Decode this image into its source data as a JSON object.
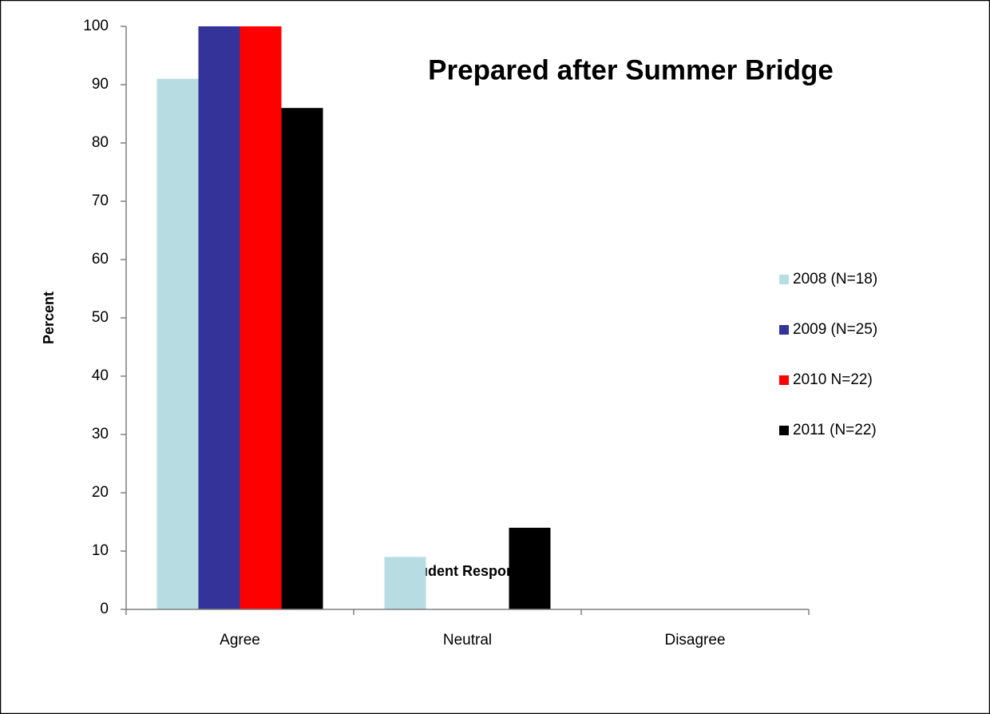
{
  "chart_data": {
    "type": "bar",
    "title": "Prepared after Summer Bridge",
    "xlabel": "Student Response",
    "ylabel": "Percent",
    "categories": [
      "Agree",
      "Neutral",
      "Disagree"
    ],
    "series": [
      {
        "name": "2008 (N=18)",
        "color": "#b7dde2",
        "values": [
          91,
          9,
          0
        ]
      },
      {
        "name": "2009 (N=25)",
        "color": "#333399",
        "values": [
          100,
          0,
          0
        ]
      },
      {
        "name": "2010 N=22)",
        "color": "#ff0000",
        "values": [
          100,
          0,
          0
        ]
      },
      {
        "name": "2011 (N=22)",
        "color": "#000000",
        "values": [
          86,
          14,
          0
        ]
      }
    ],
    "ylim": [
      0,
      100
    ],
    "yticks": [
      0,
      10,
      20,
      30,
      40,
      50,
      60,
      70,
      80,
      90,
      100
    ],
    "grid": false,
    "legend": "right"
  }
}
